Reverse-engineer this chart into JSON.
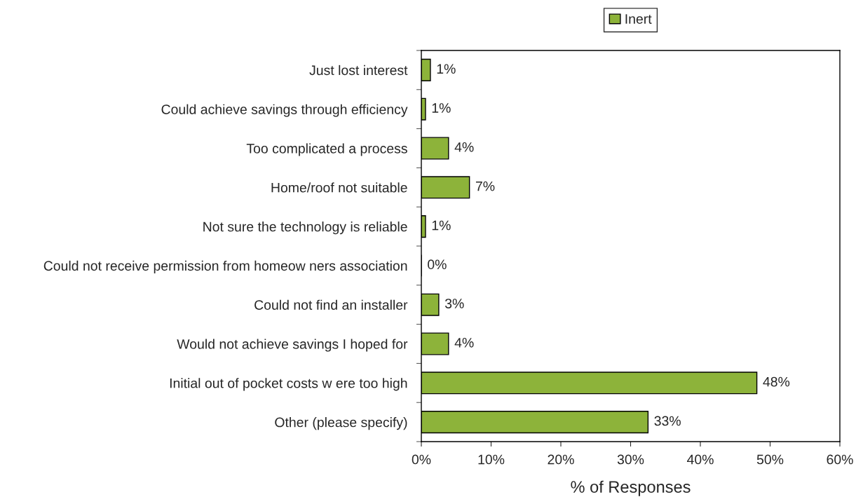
{
  "chart_data": {
    "type": "bar",
    "orientation": "horizontal",
    "xlabel": "% of Responses",
    "categories": [
      "Just lost interest",
      "Could achieve savings through efficiency",
      "Too complicated a process",
      "Home/roof not suitable",
      "Not sure the technology is reliable",
      "Could not receive permission from homeow ners association",
      "Could not find an installer",
      "Would not achieve savings I hoped for",
      "Initial out of pocket costs w ere too high",
      "Other (please specify)"
    ],
    "series": [
      {
        "name": "Inert",
        "color": "#8db33a",
        "values": [
          1.3,
          0.6,
          3.9,
          6.9,
          0.6,
          0,
          2.5,
          3.9,
          48.1,
          32.5
        ],
        "value_labels": [
          "1%",
          "1%",
          "4%",
          "7%",
          "1%",
          "0%",
          "3%",
          "4%",
          "48%",
          "33%"
        ]
      }
    ],
    "xlim": [
      0,
      60
    ],
    "xticks": [
      {
        "value": 0,
        "label": "0%"
      },
      {
        "value": 10,
        "label": "10%"
      },
      {
        "value": 20,
        "label": "20%"
      },
      {
        "value": 30,
        "label": "30%"
      },
      {
        "value": 40,
        "label": "40%"
      },
      {
        "value": 50,
        "label": "50%"
      },
      {
        "value": 60,
        "label": "60%"
      }
    ],
    "grid": false,
    "legend": "top"
  }
}
